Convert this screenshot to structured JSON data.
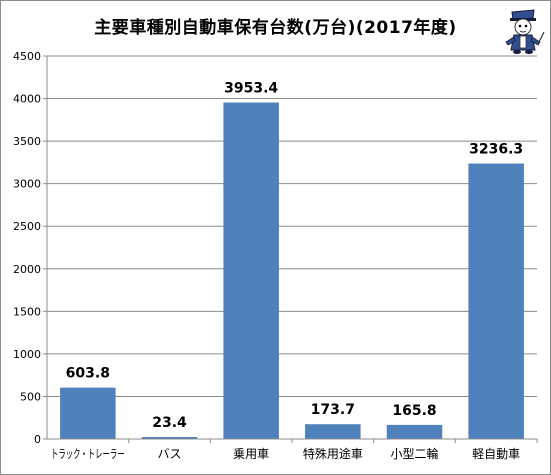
{
  "chart_data": {
    "type": "bar",
    "title": "主要車種別自動車保有台数(万台)(2017年度)",
    "xlabel": "",
    "ylabel": "",
    "categories": [
      "トラック・トレーラー",
      "バス",
      "乗用車",
      "特殊用途車",
      "小型二輪",
      "軽自動車"
    ],
    "values": [
      603.8,
      23.4,
      3953.4,
      173.7,
      165.8,
      3236.3
    ],
    "value_labels": [
      "603.8",
      "23.4",
      "3953.4",
      "173.7",
      "165.8",
      "3236.3"
    ],
    "ylim": [
      0,
      4500
    ],
    "yticks": [
      0,
      500,
      1000,
      1500,
      2000,
      2500,
      3000,
      3500,
      4000,
      4500
    ],
    "grid": true,
    "legend": "none",
    "colors": {
      "bar": "#4f81bd",
      "grid": "#8c8c8c",
      "axis": "#8c8c8c"
    }
  },
  "decoration": {
    "mascot_icon": "cartoon-character-icon"
  }
}
